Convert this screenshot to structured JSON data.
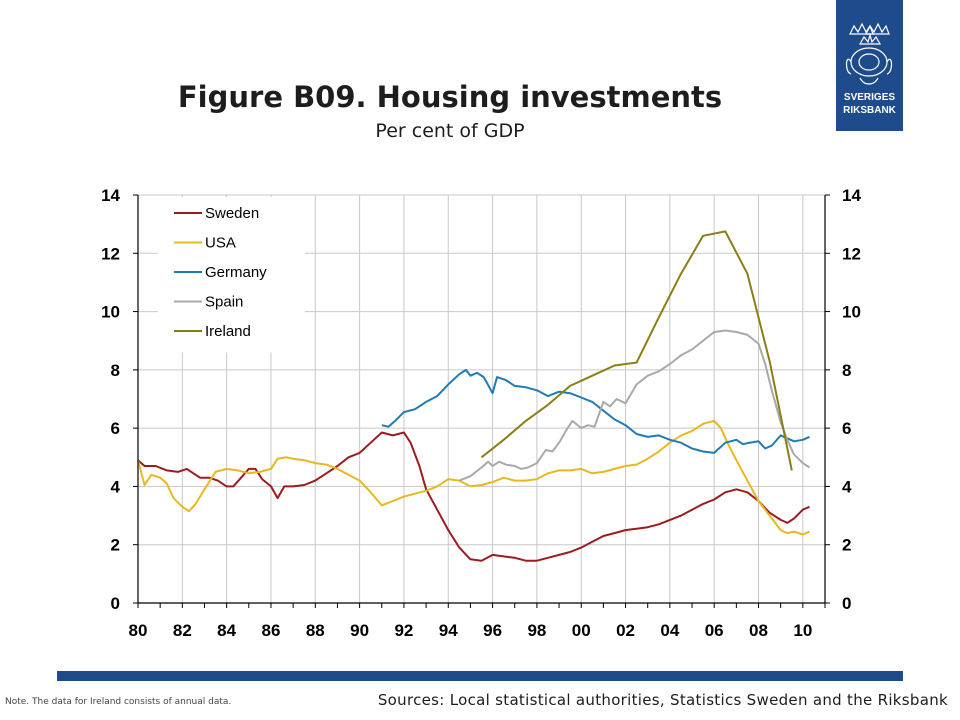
{
  "header": {
    "title": "Figure B09. Housing investments",
    "subtitle": "Per cent of GDP"
  },
  "logo": {
    "line1": "SVERIGES",
    "line2": "RIKSBANK",
    "color": "#1e4b8c"
  },
  "footer": {
    "note": "Note. The data for Ireland consists of annual data.",
    "sources": "Sources: Local statistical authorities, Statistics Sweden and the Riksbank",
    "band_color": "#1e4b8c"
  },
  "chart_data": {
    "type": "line",
    "title": "Figure B09. Housing investments",
    "subtitle": "Per cent of GDP",
    "xlim": [
      1980,
      2011
    ],
    "ylim": [
      0,
      14
    ],
    "x_ticks": [
      "80",
      "82",
      "84",
      "86",
      "88",
      "90",
      "92",
      "94",
      "96",
      "98",
      "00",
      "02",
      "04",
      "06",
      "08",
      "10"
    ],
    "y_ticks": [
      "0",
      "2",
      "4",
      "6",
      "8",
      "10",
      "12",
      "14"
    ],
    "grid": true,
    "legend_position": "top-left",
    "series": [
      {
        "name": "Sweden",
        "color": "#9b1c1f",
        "points": [
          [
            1980,
            4.9
          ],
          [
            1980.3,
            4.7
          ],
          [
            1980.8,
            4.7
          ],
          [
            1981.3,
            4.55
          ],
          [
            1981.8,
            4.5
          ],
          [
            1982.2,
            4.6
          ],
          [
            1982.5,
            4.45
          ],
          [
            1982.8,
            4.3
          ],
          [
            1983.2,
            4.3
          ],
          [
            1983.6,
            4.2
          ],
          [
            1984,
            4.0
          ],
          [
            1984.3,
            4.0
          ],
          [
            1984.6,
            4.25
          ],
          [
            1985,
            4.6
          ],
          [
            1985.3,
            4.6
          ],
          [
            1985.6,
            4.25
          ],
          [
            1986,
            4.0
          ],
          [
            1986.3,
            3.6
          ],
          [
            1986.6,
            4.0
          ],
          [
            1987,
            4.0
          ],
          [
            1987.5,
            4.05
          ],
          [
            1988,
            4.2
          ],
          [
            1988.5,
            4.45
          ],
          [
            1989,
            4.7
          ],
          [
            1989.5,
            5.0
          ],
          [
            1990,
            5.15
          ],
          [
            1990.5,
            5.5
          ],
          [
            1991,
            5.85
          ],
          [
            1991.5,
            5.75
          ],
          [
            1992,
            5.85
          ],
          [
            1992.3,
            5.5
          ],
          [
            1992.7,
            4.7
          ],
          [
            1993,
            3.9
          ],
          [
            1993.5,
            3.2
          ],
          [
            1994,
            2.5
          ],
          [
            1994.5,
            1.9
          ],
          [
            1995,
            1.5
          ],
          [
            1995.5,
            1.45
          ],
          [
            1996,
            1.65
          ],
          [
            1996.5,
            1.6
          ],
          [
            1997,
            1.55
          ],
          [
            1997.5,
            1.45
          ],
          [
            1998,
            1.45
          ],
          [
            1998.5,
            1.55
          ],
          [
            1999,
            1.65
          ],
          [
            1999.5,
            1.75
          ],
          [
            2000,
            1.9
          ],
          [
            2000.5,
            2.1
          ],
          [
            2001,
            2.3
          ],
          [
            2001.5,
            2.4
          ],
          [
            2002,
            2.5
          ],
          [
            2002.5,
            2.55
          ],
          [
            2003,
            2.6
          ],
          [
            2003.5,
            2.7
          ],
          [
            2004,
            2.85
          ],
          [
            2004.5,
            3.0
          ],
          [
            2005,
            3.2
          ],
          [
            2005.5,
            3.4
          ],
          [
            2006,
            3.55
          ],
          [
            2006.5,
            3.8
          ],
          [
            2007,
            3.9
          ],
          [
            2007.5,
            3.8
          ],
          [
            2008,
            3.5
          ],
          [
            2008.5,
            3.1
          ],
          [
            2009,
            2.85
          ],
          [
            2009.3,
            2.75
          ],
          [
            2009.6,
            2.9
          ],
          [
            2010,
            3.2
          ],
          [
            2010.3,
            3.3
          ]
        ]
      },
      {
        "name": "USA",
        "color": "#e8b820",
        "points": [
          [
            1980,
            4.9
          ],
          [
            1980.3,
            4.05
          ],
          [
            1980.6,
            4.4
          ],
          [
            1981,
            4.3
          ],
          [
            1981.3,
            4.1
          ],
          [
            1981.6,
            3.6
          ],
          [
            1982,
            3.3
          ],
          [
            1982.3,
            3.15
          ],
          [
            1982.6,
            3.4
          ],
          [
            1983,
            3.9
          ],
          [
            1983.5,
            4.5
          ],
          [
            1984,
            4.6
          ],
          [
            1984.5,
            4.55
          ],
          [
            1985,
            4.45
          ],
          [
            1985.5,
            4.5
          ],
          [
            1986,
            4.6
          ],
          [
            1986.3,
            4.95
          ],
          [
            1986.7,
            5.0
          ],
          [
            1987,
            4.95
          ],
          [
            1987.5,
            4.9
          ],
          [
            1988,
            4.8
          ],
          [
            1988.5,
            4.75
          ],
          [
            1989,
            4.6
          ],
          [
            1989.5,
            4.4
          ],
          [
            1990,
            4.2
          ],
          [
            1990.5,
            3.8
          ],
          [
            1991,
            3.35
          ],
          [
            1991.5,
            3.5
          ],
          [
            1992,
            3.65
          ],
          [
            1992.5,
            3.75
          ],
          [
            1993,
            3.85
          ],
          [
            1993.5,
            4.0
          ],
          [
            1994,
            4.25
          ],
          [
            1994.5,
            4.2
          ],
          [
            1995,
            4.0
          ],
          [
            1995.5,
            4.05
          ],
          [
            1996,
            4.15
          ],
          [
            1996.5,
            4.3
          ],
          [
            1997,
            4.2
          ],
          [
            1997.5,
            4.2
          ],
          [
            1998,
            4.25
          ],
          [
            1998.5,
            4.45
          ],
          [
            1999,
            4.55
          ],
          [
            1999.5,
            4.55
          ],
          [
            2000,
            4.6
          ],
          [
            2000.5,
            4.45
          ],
          [
            2001,
            4.5
          ],
          [
            2001.5,
            4.6
          ],
          [
            2002,
            4.7
          ],
          [
            2002.5,
            4.75
          ],
          [
            2003,
            4.95
          ],
          [
            2003.5,
            5.2
          ],
          [
            2004,
            5.5
          ],
          [
            2004.5,
            5.75
          ],
          [
            2005,
            5.9
          ],
          [
            2005.5,
            6.15
          ],
          [
            2006,
            6.25
          ],
          [
            2006.3,
            6.0
          ],
          [
            2006.6,
            5.5
          ],
          [
            2007,
            4.9
          ],
          [
            2007.5,
            4.2
          ],
          [
            2008,
            3.5
          ],
          [
            2008.5,
            3.0
          ],
          [
            2009,
            2.5
          ],
          [
            2009.3,
            2.4
          ],
          [
            2009.6,
            2.45
          ],
          [
            2010,
            2.35
          ],
          [
            2010.3,
            2.45
          ]
        ]
      },
      {
        "name": "Germany",
        "color": "#1f7bb5",
        "points": [
          [
            1991,
            6.1
          ],
          [
            1991.3,
            6.05
          ],
          [
            1991.6,
            6.25
          ],
          [
            1992,
            6.55
          ],
          [
            1992.5,
            6.65
          ],
          [
            1993,
            6.9
          ],
          [
            1993.5,
            7.1
          ],
          [
            1994,
            7.5
          ],
          [
            1994.5,
            7.85
          ],
          [
            1994.8,
            8.0
          ],
          [
            1995,
            7.8
          ],
          [
            1995.3,
            7.9
          ],
          [
            1995.6,
            7.75
          ],
          [
            1996,
            7.2
          ],
          [
            1996.2,
            7.75
          ],
          [
            1996.6,
            7.65
          ],
          [
            1997,
            7.45
          ],
          [
            1997.5,
            7.4
          ],
          [
            1998,
            7.3
          ],
          [
            1998.5,
            7.1
          ],
          [
            1999,
            7.25
          ],
          [
            1999.5,
            7.2
          ],
          [
            2000,
            7.05
          ],
          [
            2000.5,
            6.9
          ],
          [
            2001,
            6.6
          ],
          [
            2001.5,
            6.3
          ],
          [
            2002,
            6.1
          ],
          [
            2002.5,
            5.8
          ],
          [
            2003,
            5.7
          ],
          [
            2003.5,
            5.75
          ],
          [
            2004,
            5.6
          ],
          [
            2004.5,
            5.5
          ],
          [
            2005,
            5.3
          ],
          [
            2005.5,
            5.2
          ],
          [
            2006,
            5.15
          ],
          [
            2006.5,
            5.5
          ],
          [
            2007,
            5.6
          ],
          [
            2007.3,
            5.45
          ],
          [
            2007.6,
            5.5
          ],
          [
            2008,
            5.55
          ],
          [
            2008.3,
            5.3
          ],
          [
            2008.6,
            5.4
          ],
          [
            2009,
            5.75
          ],
          [
            2009.3,
            5.65
          ],
          [
            2009.6,
            5.55
          ],
          [
            2010,
            5.6
          ],
          [
            2010.3,
            5.7
          ]
        ]
      },
      {
        "name": "Spain",
        "color": "#a9a9a9",
        "points": [
          [
            1994.5,
            4.2
          ],
          [
            1995,
            4.35
          ],
          [
            1995.5,
            4.65
          ],
          [
            1995.8,
            4.85
          ],
          [
            1996,
            4.7
          ],
          [
            1996.3,
            4.85
          ],
          [
            1996.6,
            4.75
          ],
          [
            1997,
            4.7
          ],
          [
            1997.3,
            4.6
          ],
          [
            1997.6,
            4.65
          ],
          [
            1998,
            4.8
          ],
          [
            1998.4,
            5.25
          ],
          [
            1998.7,
            5.2
          ],
          [
            1999,
            5.5
          ],
          [
            1999.3,
            5.9
          ],
          [
            1999.6,
            6.25
          ],
          [
            2000,
            6.0
          ],
          [
            2000.3,
            6.1
          ],
          [
            2000.6,
            6.05
          ],
          [
            2001,
            6.9
          ],
          [
            2001.3,
            6.75
          ],
          [
            2001.6,
            7.0
          ],
          [
            2002,
            6.85
          ],
          [
            2002.5,
            7.5
          ],
          [
            2003,
            7.8
          ],
          [
            2003.5,
            7.95
          ],
          [
            2004,
            8.2
          ],
          [
            2004.5,
            8.5
          ],
          [
            2005,
            8.7
          ],
          [
            2005.5,
            9.0
          ],
          [
            2006,
            9.3
          ],
          [
            2006.5,
            9.35
          ],
          [
            2007,
            9.3
          ],
          [
            2007.5,
            9.2
          ],
          [
            2008,
            8.9
          ],
          [
            2008.3,
            8.2
          ],
          [
            2008.6,
            7.3
          ],
          [
            2009,
            6.2
          ],
          [
            2009.3,
            5.6
          ],
          [
            2009.6,
            5.1
          ],
          [
            2010,
            4.8
          ],
          [
            2010.3,
            4.65
          ]
        ]
      },
      {
        "name": "Ireland",
        "color": "#8a7e16",
        "points": [
          [
            1995.5,
            5.0
          ],
          [
            1996.5,
            5.6
          ],
          [
            1997.5,
            6.25
          ],
          [
            1998.5,
            6.8
          ],
          [
            1999.5,
            7.45
          ],
          [
            2000.5,
            7.8
          ],
          [
            2001.5,
            8.15
          ],
          [
            2002.5,
            8.25
          ],
          [
            2003.5,
            9.8
          ],
          [
            2004.5,
            11.3
          ],
          [
            2005.5,
            12.6
          ],
          [
            2006.5,
            12.75
          ],
          [
            2007.5,
            11.3
          ],
          [
            2008.5,
            8.3
          ],
          [
            2009.5,
            4.55
          ]
        ]
      }
    ]
  }
}
